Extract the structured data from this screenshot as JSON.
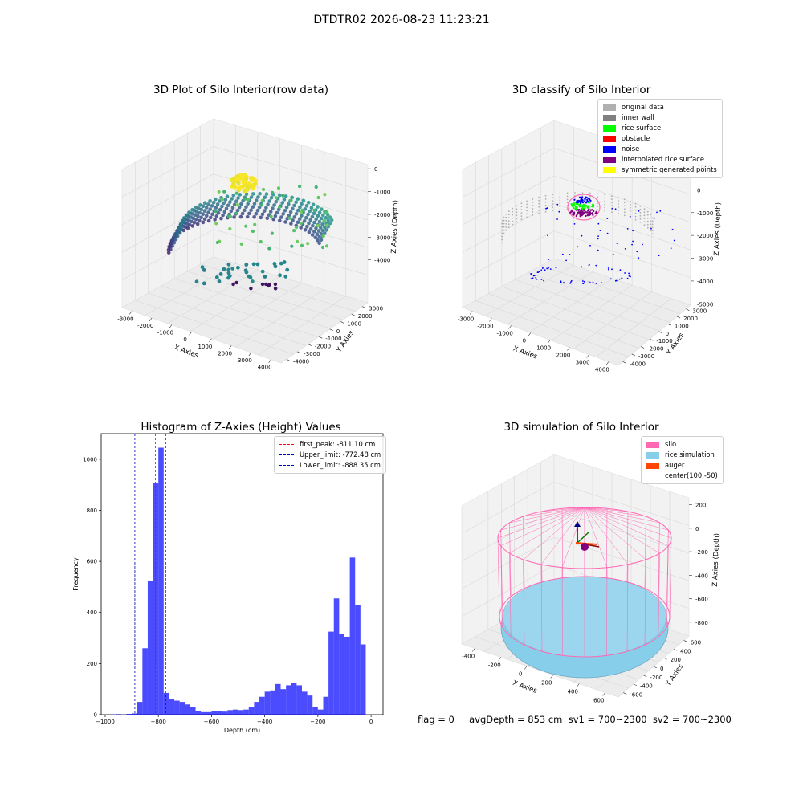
{
  "figure": {
    "suptitle": "DTDTR02 2026-08-23 11:23:21",
    "status_text": "flag = 0     avgDepth = 853 cm  sv1 = 700~2300  sv2 = 700~2300"
  },
  "chart_data": [
    {
      "type": "scatter",
      "panel": "raw",
      "title": "3D Plot of Silo Interior(row data)",
      "xlabel": "X Axies",
      "ylabel": "Y Axies",
      "zlabel": "Z Axies (Depth)",
      "x_ticks": [
        "-3000",
        "-2000",
        "-1000",
        "0",
        "1000",
        "2000",
        "3000",
        "4000"
      ],
      "y_ticks": [
        "-4000",
        "-3000",
        "-2000",
        "-1000",
        "0",
        "1000",
        "2000",
        "3000"
      ],
      "z_ticks": [
        "0",
        "-1000",
        "-2000",
        "-3000",
        "-4000"
      ],
      "xlim": [
        -3500,
        4000
      ],
      "ylim": [
        -4000,
        3500
      ],
      "zlim": [
        -4500,
        0
      ],
      "grid": true,
      "colormap": "viridis"
    },
    {
      "type": "scatter",
      "panel": "classify",
      "title": "3D classify of Silo Interior",
      "xlabel": "X Axies",
      "ylabel": "Y Axies",
      "zlabel": "Z Axies (Depth)",
      "x_ticks": [
        "-3000",
        "-2000",
        "-1000",
        "0",
        "1000",
        "2000",
        "3000",
        "4000"
      ],
      "y_ticks": [
        "-4000",
        "-3000",
        "-2000",
        "-1000",
        "0",
        "1000",
        "2000",
        "3000"
      ],
      "z_ticks": [
        "1000",
        "0",
        "-1000",
        "-2000",
        "-3000",
        "-4000",
        "-5000"
      ],
      "xlim": [
        -3500,
        4000
      ],
      "ylim": [
        -4000,
        3500
      ],
      "zlim": [
        -5500,
        1000
      ],
      "grid": true,
      "legend": "top-right",
      "legend_items": [
        {
          "label": "original data",
          "color": "#b0b0b0"
        },
        {
          "label": "inner wall",
          "color": "#808080"
        },
        {
          "label": "rice surface",
          "color": "#00ff00"
        },
        {
          "label": "obstacle",
          "color": "#ff0000"
        },
        {
          "label": "noise",
          "color": "#0000ff"
        },
        {
          "label": "interpolated rice surface",
          "color": "#800080"
        },
        {
          "label": "symmetric generated points",
          "color": "#ffff00"
        }
      ]
    },
    {
      "type": "bar",
      "panel": "histogram",
      "title": "Histogram of Z-Axies (Height) Values",
      "xlabel": "Depth (cm)",
      "ylabel": "Frequency",
      "xlim": [
        -1015,
        45
      ],
      "ylim": [
        0,
        1100
      ],
      "x_ticks": [
        -1000,
        -800,
        -600,
        -400,
        -200,
        0
      ],
      "y_ticks": [
        0,
        200,
        400,
        600,
        800,
        1000
      ],
      "bar_color": "#0000ff",
      "bin_start": -1000,
      "bin_width": 20,
      "values": [
        0,
        1,
        2,
        0,
        3,
        5,
        50,
        260,
        525,
        905,
        1045,
        85,
        60,
        55,
        50,
        40,
        30,
        15,
        10,
        10,
        15,
        15,
        12,
        18,
        20,
        18,
        20,
        30,
        50,
        70,
        90,
        95,
        120,
        100,
        115,
        125,
        115,
        90,
        75,
        30,
        20,
        70,
        325,
        455,
        315,
        305,
        615,
        430,
        275
      ],
      "lines": [
        {
          "label": "first_peak: -811.10 cm",
          "x": -811.1,
          "color": "#ff0000"
        },
        {
          "label": "Upper_limit: -772.48 cm",
          "x": -772.48,
          "color": "#0000bb"
        },
        {
          "label": "Lower_limit: -888.35 cm",
          "x": -888.35,
          "color": "#0000bb"
        }
      ],
      "legend": "top-right"
    },
    {
      "type": "scatter",
      "panel": "simulation",
      "title": "3D simulation of Silo Interior",
      "xlabel": "X Axies",
      "ylabel": "Y Axies",
      "zlabel": "Z Axies (Depth)",
      "x_ticks": [
        "-400",
        "-200",
        "0",
        "200",
        "400",
        "600"
      ],
      "y_ticks": [
        "-600",
        "-400",
        "-200",
        "0",
        "200",
        "400",
        "600"
      ],
      "z_ticks": [
        "200",
        "0",
        "-200",
        "-400",
        "-600",
        "-800"
      ],
      "xlim": [
        -500,
        700
      ],
      "ylim": [
        -700,
        600
      ],
      "zlim": [
        -900,
        300
      ],
      "grid": true,
      "legend": "top-right",
      "legend_items": [
        {
          "label": "silo",
          "color": "#ff69b4"
        },
        {
          "label": "rice simulation",
          "color": "#87ceeb"
        },
        {
          "label": "auger",
          "color": "#ff4500"
        },
        {
          "label": "center(100,-50)",
          "color": ""
        }
      ]
    }
  ]
}
